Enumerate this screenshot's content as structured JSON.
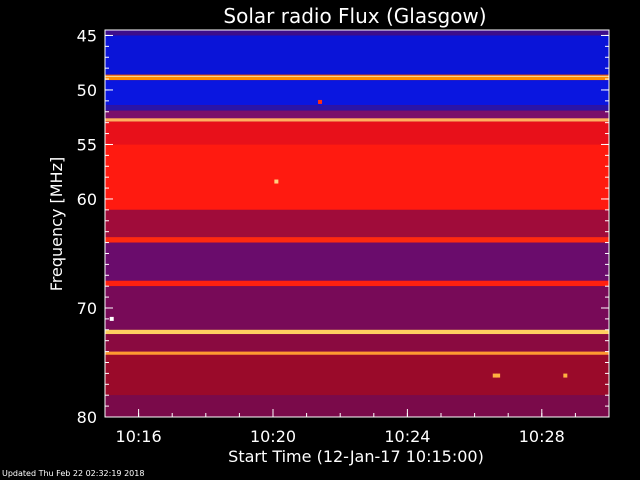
{
  "chart_data": {
    "type": "heatmap",
    "title": "Solar radio Flux (Glasgow)",
    "xlabel": "Start Time (12-Jan-17 10:15:00)",
    "ylabel": "Frequency [MHz]",
    "x_tick_labels": [
      "10:16",
      "10:20",
      "10:24",
      "10:28"
    ],
    "x_ticks_minutes": [
      1,
      5,
      9,
      13
    ],
    "xlim_minutes": [
      0,
      15
    ],
    "y_ticks": [
      45,
      50,
      55,
      60,
      70,
      80
    ],
    "y_tick_labels": [
      "45",
      "50",
      "55",
      "60",
      "70",
      "80"
    ],
    "ylim": [
      44.5,
      80
    ],
    "bands": [
      {
        "f0": 44.5,
        "f1": 45.0,
        "color": "#3d0e8c"
      },
      {
        "f0": 45.0,
        "f1": 48.6,
        "color": "#0a14d8"
      },
      {
        "f0": 48.6,
        "f1": 48.7,
        "color": "#ff6a00"
      },
      {
        "f0": 48.7,
        "f1": 48.8,
        "color": "#fff6b0"
      },
      {
        "f0": 48.8,
        "f1": 49.1,
        "color": "#ff8c00"
      },
      {
        "f0": 49.1,
        "f1": 51.4,
        "color": "#0a16e0"
      },
      {
        "f0": 51.4,
        "f1": 51.9,
        "color": "#2a14a8"
      },
      {
        "f0": 51.9,
        "f1": 52.6,
        "color": "#7a0e6a"
      },
      {
        "f0": 52.6,
        "f1": 52.9,
        "color": "#ffb060"
      },
      {
        "f0": 52.9,
        "f1": 55.0,
        "color": "#e8101a"
      },
      {
        "f0": 55.0,
        "f1": 61.0,
        "color": "#ff1a10"
      },
      {
        "f0": 61.0,
        "f1": 63.5,
        "color": "#a00c3a"
      },
      {
        "f0": 63.5,
        "f1": 64.0,
        "color": "#ff2a10"
      },
      {
        "f0": 64.0,
        "f1": 67.5,
        "color": "#6a0c6c"
      },
      {
        "f0": 67.5,
        "f1": 68.0,
        "color": "#ff2010"
      },
      {
        "f0": 68.0,
        "f1": 72.0,
        "color": "#780a58"
      },
      {
        "f0": 72.0,
        "f1": 72.4,
        "color": "#ffcf60"
      },
      {
        "f0": 72.4,
        "f1": 74.0,
        "color": "#8a0a40"
      },
      {
        "f0": 74.0,
        "f1": 74.3,
        "color": "#ff9a30"
      },
      {
        "f0": 74.3,
        "f1": 78.0,
        "color": "#9a0a2a"
      },
      {
        "f0": 78.0,
        "f1": 80.0,
        "color": "#7a0a4a"
      }
    ],
    "spots": [
      {
        "t": 11.6,
        "f": 76.2,
        "color": "#ffb040"
      },
      {
        "t": 11.7,
        "f": 76.2,
        "color": "#ffb040"
      },
      {
        "t": 13.7,
        "f": 76.2,
        "color": "#ffb040"
      },
      {
        "t": 5.1,
        "f": 58.4,
        "color": "#ffd080"
      },
      {
        "t": 6.4,
        "f": 51.1,
        "color": "#ff3010"
      },
      {
        "t": 0.2,
        "f": 71.0,
        "color": "#ffffff"
      }
    ]
  },
  "footer": "Updated Thu Feb 22 02:32:19 2018"
}
